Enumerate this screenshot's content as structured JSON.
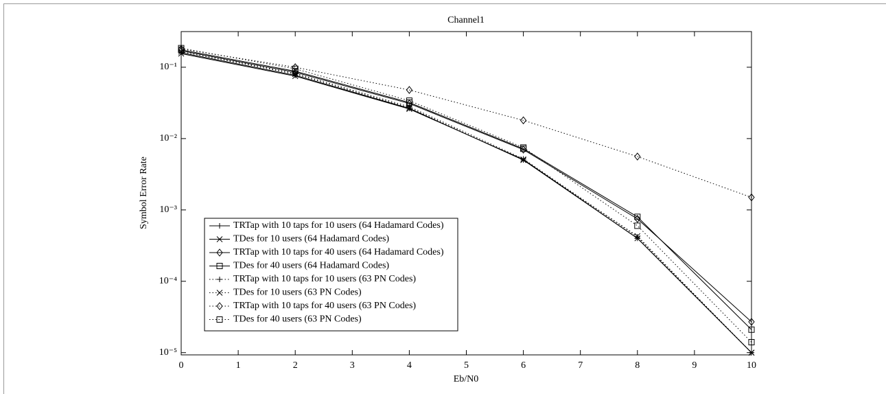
{
  "chart_data": {
    "type": "line",
    "title": "Channel1",
    "x_label": "Eb/N0",
    "y_label": "Symbol Error Rate",
    "log_y": true,
    "grid": false,
    "legend_corner": "lower left",
    "x": [
      0,
      2,
      4,
      6,
      8,
      10
    ],
    "xlim": [
      0,
      10
    ],
    "xticks": [
      0,
      1,
      2,
      3,
      4,
      5,
      6,
      7,
      8,
      9,
      10
    ],
    "ylim": [
      9.3e-06,
      0.316
    ],
    "yticks": [
      {
        "value": 1e-05,
        "label": "10⁻⁵"
      },
      {
        "value": 0.0001,
        "label": "10⁻⁴"
      },
      {
        "value": 0.001,
        "label": "10⁻³"
      },
      {
        "value": 0.01,
        "label": "10⁻²"
      },
      {
        "value": 0.1,
        "label": "10⁻¹"
      }
    ],
    "series": [
      {
        "name": "TRTap with 10 taps for 10 users (64 Hadamard Codes)",
        "color": "#000000",
        "line_style": "solid",
        "marker": "plus",
        "values": [
          0.16,
          0.077,
          0.0265,
          0.005,
          0.0004,
          1e-05
        ]
      },
      {
        "name": "TDes for 10 users (64 Hadamard Codes)",
        "color": "#000000",
        "line_style": "solid",
        "marker": "x",
        "values": [
          0.155,
          0.075,
          0.026,
          0.0051,
          0.0004,
          1e-05
        ]
      },
      {
        "name": "TRTap with 10 taps for 40 users (64 Hadamard Codes)",
        "color": "#000000",
        "line_style": "solid",
        "marker": "diamond",
        "values": [
          0.17,
          0.085,
          0.031,
          0.007,
          0.00075,
          2.7e-05
        ]
      },
      {
        "name": "TDes for 40 users (64 Hadamard Codes)",
        "color": "#000000",
        "line_style": "solid",
        "marker": "square",
        "values": [
          0.175,
          0.088,
          0.032,
          0.0072,
          0.0008,
          2.1e-05
        ]
      },
      {
        "name": "TRTap with 10 taps for 10 users (63 PN Codes)",
        "color": "#000000",
        "line_style": "dotted",
        "marker": "plus",
        "values": [
          0.17,
          0.082,
          0.028,
          0.0052,
          0.00042,
          1e-05
        ]
      },
      {
        "name": "TDes for 10 users (63 PN Codes)",
        "color": "#000000",
        "line_style": "dotted",
        "marker": "x",
        "values": [
          0.165,
          0.08,
          0.027,
          0.005,
          0.00043,
          1e-05
        ]
      },
      {
        "name": "TRTap with 10 taps for 40 users (63 PN Codes)",
        "color": "#000000",
        "line_style": "dotted",
        "marker": "diamond",
        "values": [
          0.18,
          0.1,
          0.048,
          0.018,
          0.0056,
          0.0015
        ]
      },
      {
        "name": "TDes for 40 users (63 PN Codes)",
        "color": "#000000",
        "line_style": "dotted",
        "marker": "square",
        "values": [
          0.185,
          0.095,
          0.034,
          0.0075,
          0.0006,
          1.4e-05
        ]
      }
    ]
  }
}
